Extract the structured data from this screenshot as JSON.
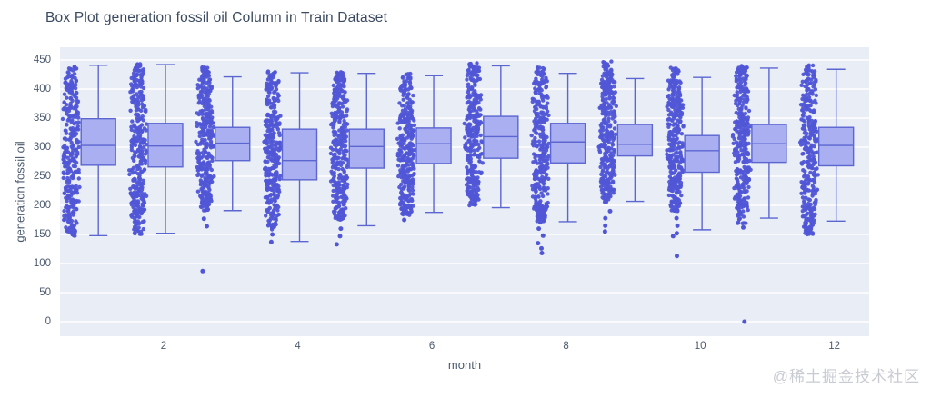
{
  "page": {
    "title": "Box Plot generation fossil oil Column in Train Dataset",
    "watermark": "@稀土掘金技术社区"
  },
  "chart_data": {
    "type": "box",
    "title": "Box Plot generation fossil oil Column in Train Dataset",
    "xlabel": "month",
    "ylabel": "generation fossil oil",
    "x_ticks": [
      2,
      4,
      6,
      8,
      10,
      12
    ],
    "y_ticks": [
      0,
      50,
      100,
      150,
      200,
      250,
      300,
      350,
      400,
      450
    ],
    "xlim": [
      0.45,
      12.55
    ],
    "ylim": [
      -25,
      472
    ],
    "grid": "horizontal-only",
    "legend": "none",
    "points_position": "left-of-box",
    "boxes": [
      {
        "month": 1,
        "low": 148,
        "q1": 269,
        "median": 303,
        "q3": 349,
        "high": 441
      },
      {
        "month": 2,
        "low": 152,
        "q1": 266,
        "median": 302,
        "q3": 341,
        "high": 442
      },
      {
        "month": 3,
        "low": 191,
        "q1": 277,
        "median": 307,
        "q3": 334,
        "high": 421
      },
      {
        "month": 4,
        "low": 138,
        "q1": 244,
        "median": 277,
        "q3": 331,
        "high": 428
      },
      {
        "month": 5,
        "low": 165,
        "q1": 264,
        "median": 301,
        "q3": 331,
        "high": 427
      },
      {
        "month": 6,
        "low": 188,
        "q1": 272,
        "median": 306,
        "q3": 333,
        "high": 423
      },
      {
        "month": 7,
        "low": 196,
        "q1": 281,
        "median": 318,
        "q3": 353,
        "high": 440
      },
      {
        "month": 8,
        "low": 172,
        "q1": 273,
        "median": 309,
        "q3": 341,
        "high": 427
      },
      {
        "month": 9,
        "low": 207,
        "q1": 285,
        "median": 305,
        "q3": 339,
        "high": 418
      },
      {
        "month": 10,
        "low": 158,
        "q1": 257,
        "median": 294,
        "q3": 320,
        "high": 420
      },
      {
        "month": 11,
        "low": 178,
        "q1": 274,
        "median": 306,
        "q3": 339,
        "high": 436
      },
      {
        "month": 12,
        "low": 173,
        "q1": 268,
        "median": 303,
        "q3": 334,
        "high": 434
      }
    ],
    "point_strips": [
      {
        "month": 1,
        "min": 147,
        "max": 440,
        "outliers": []
      },
      {
        "month": 2,
        "min": 150,
        "max": 443,
        "outliers": []
      },
      {
        "month": 3,
        "min": 190,
        "max": 438,
        "outliers": [
          177,
          164,
          87
        ]
      },
      {
        "month": 4,
        "min": 158,
        "max": 431,
        "outliers": [
          150,
          137
        ]
      },
      {
        "month": 5,
        "min": 175,
        "max": 430,
        "outliers": [
          160,
          147,
          133
        ]
      },
      {
        "month": 6,
        "min": 183,
        "max": 428,
        "outliers": [
          175
        ]
      },
      {
        "month": 7,
        "min": 198,
        "max": 445,
        "outliers": []
      },
      {
        "month": 8,
        "min": 170,
        "max": 437,
        "outliers": [
          160,
          148,
          135,
          126,
          118
        ]
      },
      {
        "month": 9,
        "min": 205,
        "max": 448,
        "outliers": [
          190,
          178,
          165,
          155
        ]
      },
      {
        "month": 10,
        "min": 190,
        "max": 437,
        "outliers": [
          178,
          165,
          152,
          147,
          113
        ]
      },
      {
        "month": 11,
        "min": 168,
        "max": 440,
        "outliers": [
          162,
          0
        ]
      },
      {
        "month": 12,
        "min": 150,
        "max": 441,
        "outliers": []
      }
    ],
    "colors": {
      "point": "#5056d6",
      "box_fill": "#a9aff1",
      "box_border": "#5c66d1",
      "plot_bg": "#e8edf6",
      "grid": "#ffffff",
      "title_text": "#3b4a5f",
      "axis_text": "#4c5a6e",
      "watermark": "#c8ccd2"
    }
  }
}
